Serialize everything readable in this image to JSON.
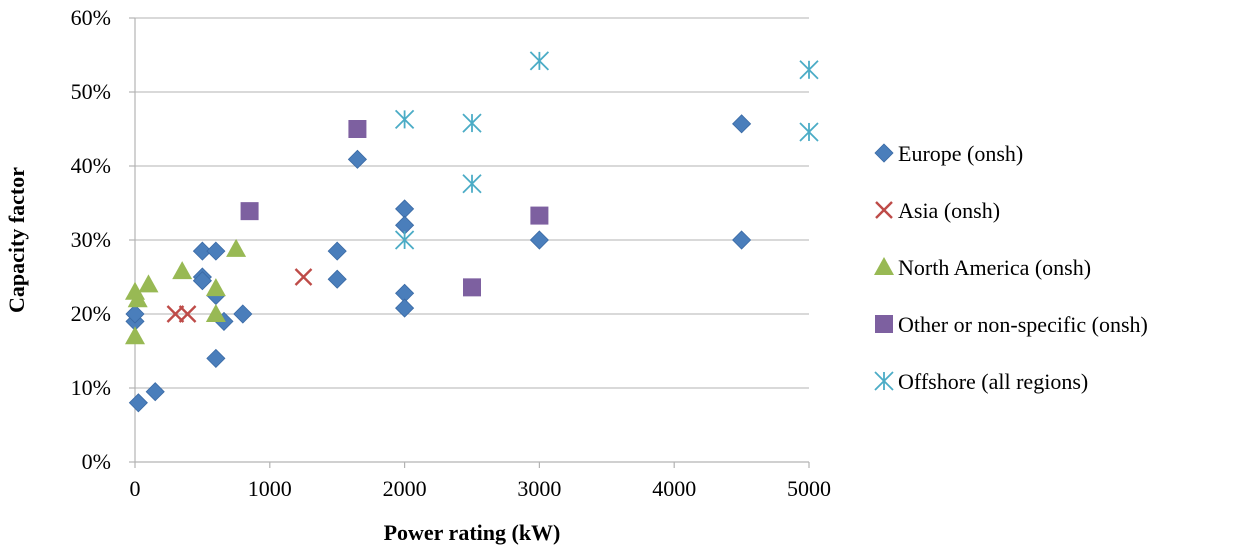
{
  "chart_data": {
    "type": "scatter",
    "title": "",
    "xlabel": "Power rating (kW)",
    "ylabel": "Capacity factor",
    "xlim": [
      0,
      5000
    ],
    "ylim": [
      0,
      0.6
    ],
    "x_ticks": [
      0,
      1000,
      2000,
      3000,
      4000,
      5000
    ],
    "x_tick_labels": [
      "0",
      "1000",
      "2000",
      "3000",
      "4000",
      "5000"
    ],
    "y_ticks": [
      0,
      0.1,
      0.2,
      0.3,
      0.4,
      0.5,
      0.6
    ],
    "y_tick_labels": [
      "0%",
      "10%",
      "20%",
      "30%",
      "40%",
      "50%",
      "60%"
    ],
    "grid": "horizontal",
    "legend_position": "right",
    "series": [
      {
        "name": "Europe (onsh)",
        "marker": "diamond",
        "color": "#4a7ebb",
        "points": [
          [
            0,
            0.19
          ],
          [
            0,
            0.2
          ],
          [
            25,
            0.08
          ],
          [
            150,
            0.095
          ],
          [
            500,
            0.285
          ],
          [
            500,
            0.25
          ],
          [
            500,
            0.245
          ],
          [
            600,
            0.285
          ],
          [
            600,
            0.14
          ],
          [
            600,
            0.225
          ],
          [
            660,
            0.19
          ],
          [
            800,
            0.2
          ],
          [
            1500,
            0.285
          ],
          [
            1500,
            0.247
          ],
          [
            1650,
            0.409
          ],
          [
            2000,
            0.342
          ],
          [
            2000,
            0.32
          ],
          [
            2000,
            0.228
          ],
          [
            2000,
            0.208
          ],
          [
            3000,
            0.3
          ],
          [
            4500,
            0.457
          ],
          [
            4500,
            0.3
          ]
        ]
      },
      {
        "name": "Asia (onsh)",
        "marker": "x",
        "color": "#be4b48",
        "points": [
          [
            300,
            0.2
          ],
          [
            390,
            0.2
          ],
          [
            1250,
            0.25
          ]
        ]
      },
      {
        "name": "North America (onsh)",
        "marker": "triangle",
        "color": "#98b954",
        "points": [
          [
            0,
            0.17
          ],
          [
            0,
            0.23
          ],
          [
            20,
            0.22
          ],
          [
            100,
            0.24
          ],
          [
            350,
            0.258
          ],
          [
            600,
            0.2
          ],
          [
            600,
            0.235
          ],
          [
            750,
            0.288
          ]
        ]
      },
      {
        "name": "Other or non-specific (onsh)",
        "marker": "square",
        "color": "#7d60a0",
        "points": [
          [
            850,
            0.339
          ],
          [
            1650,
            0.45
          ],
          [
            2500,
            0.236
          ],
          [
            3000,
            0.333
          ]
        ]
      },
      {
        "name": "Offshore (all regions)",
        "marker": "star",
        "color": "#4bacc6",
        "points": [
          [
            2000,
            0.463
          ],
          [
            2000,
            0.3
          ],
          [
            2500,
            0.458
          ],
          [
            2500,
            0.376
          ],
          [
            3000,
            0.542
          ],
          [
            5000,
            0.53
          ],
          [
            5000,
            0.446
          ]
        ]
      }
    ]
  },
  "style": {
    "gridline_color": "#b3b3b3",
    "axis_color": "#b3b3b3"
  }
}
